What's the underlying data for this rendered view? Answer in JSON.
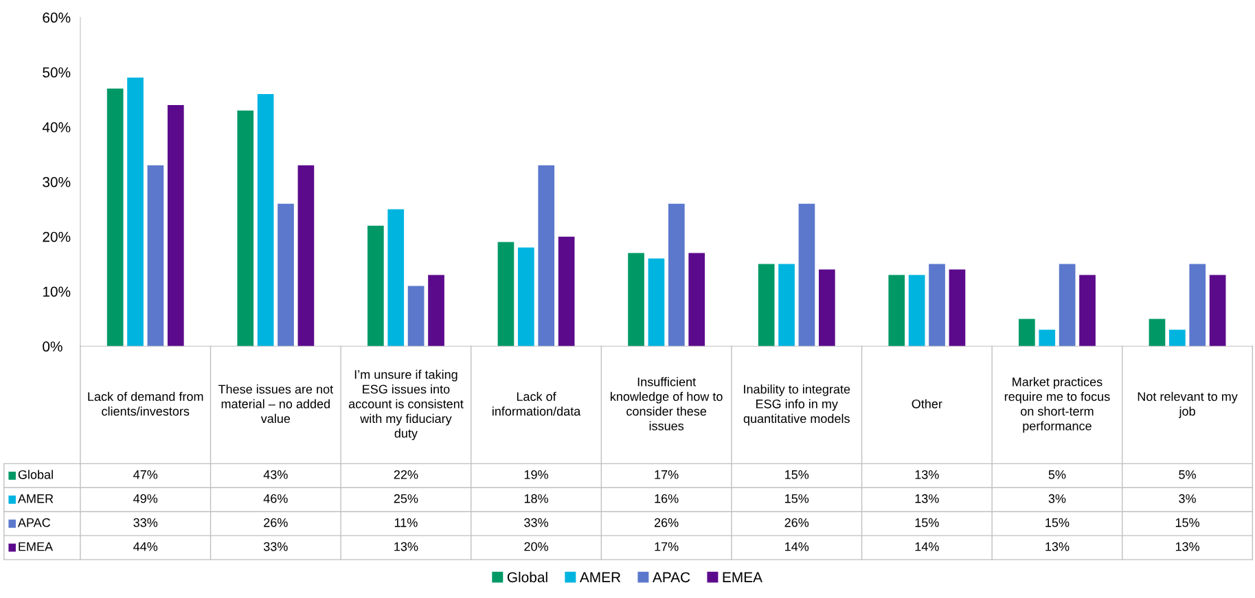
{
  "chart_data": {
    "type": "bar",
    "categories": [
      "Lack of demand from clients/investors",
      "These issues are not material – no added value",
      "I’m unsure if taking ESG issues into account is consistent with my fiduciary duty",
      "Lack of information/data",
      "Insufficient knowledge of how to consider these issues",
      "Inability to integrate ESG info in my quantitative models",
      "Other",
      "Market practices require me to focus on short-term performance",
      "Not relevant to my job"
    ],
    "series": [
      {
        "name": "Global",
        "color": "#009966",
        "values": [
          47,
          43,
          22,
          19,
          17,
          15,
          13,
          5,
          5
        ],
        "value_labels": [
          "47%",
          "43%",
          "22%",
          "19%",
          "17%",
          "15%",
          "13%",
          "5%",
          "5%"
        ]
      },
      {
        "name": "AMER",
        "color": "#00b4e0",
        "values": [
          49,
          46,
          25,
          18,
          16,
          15,
          13,
          3,
          3
        ],
        "value_labels": [
          "49%",
          "46%",
          "25%",
          "18%",
          "16%",
          "15%",
          "13%",
          "3%",
          "3%"
        ]
      },
      {
        "name": "APAC",
        "color": "#5b78cc",
        "values": [
          33,
          26,
          11,
          33,
          26,
          26,
          15,
          15,
          15
        ],
        "value_labels": [
          "33%",
          "26%",
          "11%",
          "33%",
          "26%",
          "26%",
          "15%",
          "15%",
          "15%"
        ]
      },
      {
        "name": "EMEA",
        "color": "#5c0a8c",
        "values": [
          44,
          33,
          13,
          20,
          17,
          14,
          14,
          13,
          13
        ],
        "value_labels": [
          "44%",
          "33%",
          "13%",
          "20%",
          "17%",
          "14%",
          "14%",
          "13%",
          "13%"
        ]
      }
    ],
    "ylim": [
      0,
      60
    ],
    "yticks": [
      {
        "value": 0,
        "label": "0%"
      },
      {
        "value": 10,
        "label": "10%"
      },
      {
        "value": 20,
        "label": "20%"
      },
      {
        "value": 30,
        "label": "30%"
      },
      {
        "value": 40,
        "label": "40%"
      },
      {
        "value": 50,
        "label": "50%"
      },
      {
        "value": 60,
        "label": "60%"
      }
    ],
    "grid": false,
    "legend": "bottom"
  }
}
